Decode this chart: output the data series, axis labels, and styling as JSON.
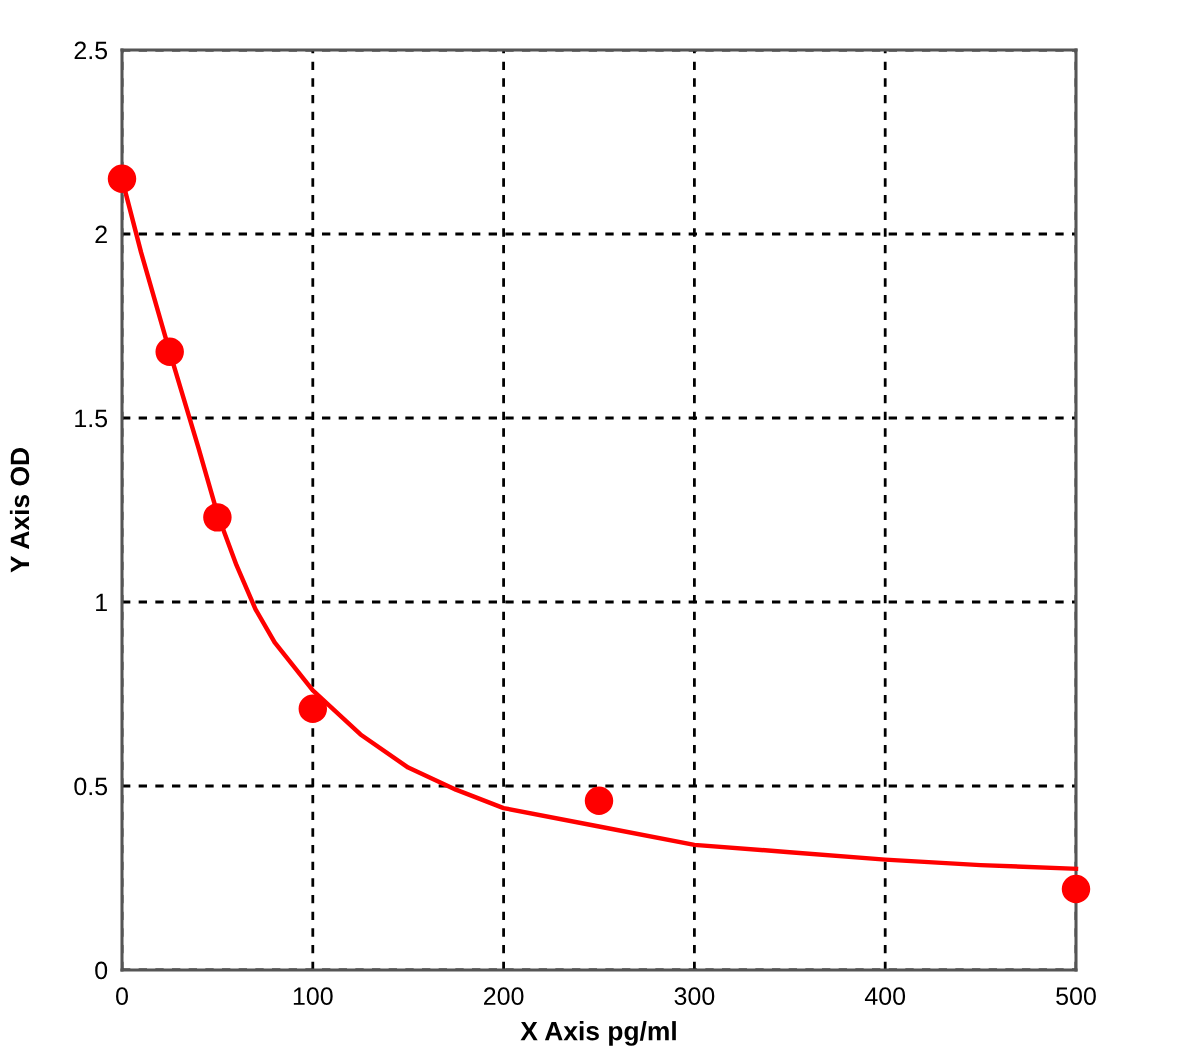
{
  "chart_data": {
    "type": "scatter",
    "xlabel": "X Axis pg/ml",
    "ylabel": "Y Axis OD",
    "xlim": [
      0,
      500
    ],
    "ylim": [
      0,
      2.5
    ],
    "xticks": [
      0,
      100,
      200,
      300,
      400,
      500
    ],
    "yticks": [
      0,
      0.5,
      1,
      1.5,
      2,
      2.5
    ],
    "grid": true,
    "series": [
      {
        "type": "line",
        "color": "#ff0000",
        "marker": "none",
        "line_style": "solid",
        "x": [
          0,
          10,
          25,
          40,
          50,
          60,
          70,
          80,
          100,
          125,
          150,
          175,
          200,
          250,
          300,
          350,
          400,
          450,
          500
        ],
        "values": [
          2.15,
          1.95,
          1.68,
          1.42,
          1.24,
          1.1,
          0.98,
          0.89,
          0.76,
          0.64,
          0.55,
          0.49,
          0.44,
          0.39,
          0.34,
          0.32,
          0.3,
          0.285,
          0.275
        ]
      },
      {
        "color": "#ff0000",
        "marker": "circle",
        "x": [
          0,
          25,
          50,
          100,
          250,
          500
        ],
        "values": [
          2.15,
          1.68,
          1.23,
          0.71,
          0.46,
          0.22
        ]
      }
    ]
  }
}
